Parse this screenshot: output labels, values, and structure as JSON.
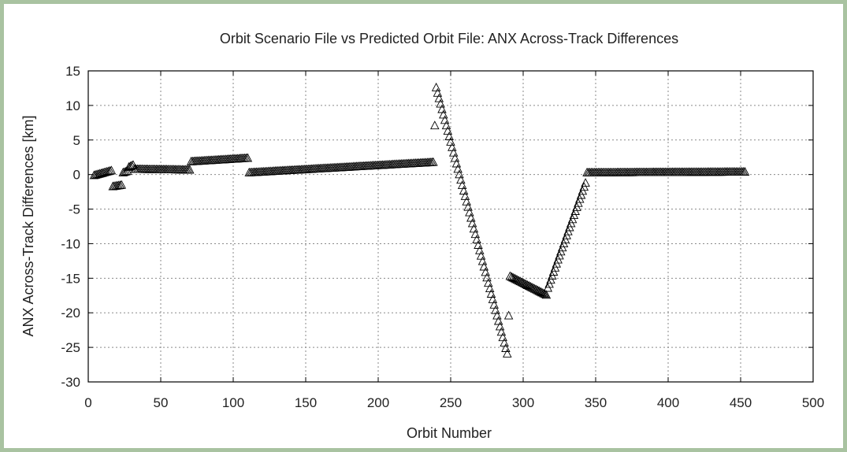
{
  "colors": {
    "frame": "#a9c3a1",
    "marker": "#000000",
    "grid": "#8a8a8a"
  },
  "chart_data": {
    "type": "scatter",
    "title": "Orbit Scenario File vs Predicted Orbit File: ANX Across-Track Differences",
    "xlabel": "Orbit Number",
    "ylabel": "ANX Across-Track Differences [km]",
    "xlim": [
      0,
      500
    ],
    "ylim": [
      -30,
      15
    ],
    "xticks": [
      0,
      50,
      100,
      150,
      200,
      250,
      300,
      350,
      400,
      450,
      500
    ],
    "yticks": [
      15,
      10,
      5,
      0,
      -5,
      -10,
      -15,
      -20,
      -25,
      -30
    ],
    "grid": true,
    "marker": "triangle-open",
    "segments": [
      {
        "x": [
          4,
          16
        ],
        "y": [
          -0.2,
          0.5
        ]
      },
      {
        "x": [
          17,
          23
        ],
        "y": [
          -1.8,
          -1.6
        ]
      },
      {
        "x": [
          24,
          27
        ],
        "y": [
          0.2,
          0.4
        ]
      },
      {
        "x": [
          28,
          31
        ],
        "y": [
          1.0,
          1.3
        ]
      },
      {
        "x": [
          32,
          70
        ],
        "y": [
          0.7,
          0.6
        ]
      },
      {
        "x": [
          71,
          110
        ],
        "y": [
          1.8,
          2.3
        ]
      },
      {
        "x": [
          111,
          238
        ],
        "y": [
          0.2,
          1.7
        ]
      },
      {
        "x": [
          240,
          289
        ],
        "y": [
          12.5,
          -26.0
        ]
      },
      {
        "x": [
          291,
          316
        ],
        "y": [
          -14.8,
          -17.5
        ]
      },
      {
        "x": [
          317,
          343
        ],
        "y": [
          -16.5,
          -1.3
        ]
      },
      {
        "x": [
          344,
          453
        ],
        "y": [
          0.2,
          0.3
        ]
      }
    ],
    "outliers": [
      {
        "x": 239,
        "y": 7.0
      },
      {
        "x": 290,
        "y": -20.5
      }
    ]
  }
}
